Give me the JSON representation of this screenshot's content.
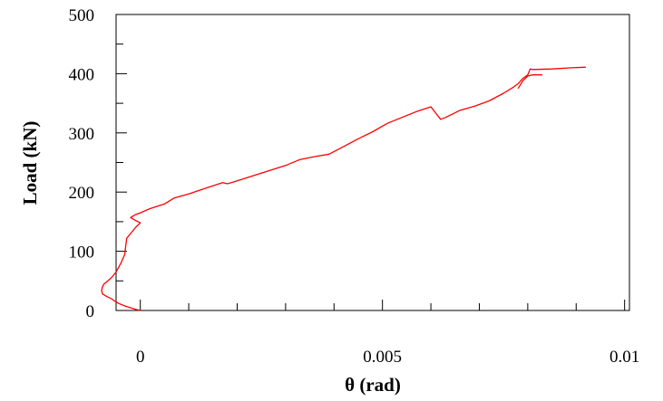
{
  "chart_data": {
    "type": "line",
    "xlabel": "θ (rad)",
    "ylabel": "Load (kN)",
    "xlim": [
      -0.0005,
      0.0101
    ],
    "ylim": [
      0,
      500
    ],
    "x_ticks": [
      0,
      0.005,
      0.01
    ],
    "x_tick_labels": [
      "0",
      "0.005",
      "0.01"
    ],
    "y_ticks": [
      0,
      100,
      200,
      300,
      400,
      500
    ],
    "y_tick_labels": [
      "0",
      "100",
      "200",
      "300",
      "400",
      "500"
    ],
    "grid": false,
    "legend": "none",
    "series": [
      {
        "color": "#ff0000",
        "points": [
          [
            0,
            0
          ],
          [
            -0.0001,
            2
          ],
          [
            -0.0003,
            7
          ],
          [
            -0.00045,
            12
          ],
          [
            -0.00055,
            17
          ],
          [
            -0.0006,
            20
          ],
          [
            -0.0007,
            24
          ],
          [
            -0.00078,
            28
          ],
          [
            -0.0008,
            34
          ],
          [
            -0.00078,
            40
          ],
          [
            -0.00075,
            45
          ],
          [
            -0.0007,
            48
          ],
          [
            -0.0006,
            55
          ],
          [
            -0.0005,
            65
          ],
          [
            -0.0004,
            80
          ],
          [
            -0.00032,
            95
          ],
          [
            -0.0003,
            110
          ],
          [
            -0.00028,
            122
          ],
          [
            -0.0002,
            130
          ],
          [
            -0.0001,
            140
          ],
          [
            0,
            148
          ],
          [
            -0.0001,
            152
          ],
          [
            -0.0002,
            157
          ],
          [
            -0.0001,
            162
          ],
          [
            0,
            165
          ],
          [
            0.0002,
            172
          ],
          [
            0.0005,
            180
          ],
          [
            0.0007,
            190
          ],
          [
            0.001,
            197
          ],
          [
            0.0014,
            208
          ],
          [
            0.0017,
            216
          ],
          [
            0.0018,
            214
          ],
          [
            0.002,
            219
          ],
          [
            0.0025,
            232
          ],
          [
            0.003,
            245
          ],
          [
            0.0033,
            255
          ],
          [
            0.0036,
            260
          ],
          [
            0.0039,
            264
          ],
          [
            0.0042,
            277
          ],
          [
            0.0045,
            290
          ],
          [
            0.0048,
            302
          ],
          [
            0.0051,
            316
          ],
          [
            0.0054,
            326
          ],
          [
            0.0057,
            336
          ],
          [
            0.006,
            344
          ],
          [
            0.0062,
            323
          ],
          [
            0.0063,
            326
          ],
          [
            0.0066,
            338
          ],
          [
            0.0069,
            345
          ],
          [
            0.0072,
            354
          ],
          [
            0.0075,
            367
          ],
          [
            0.0077,
            377
          ],
          [
            0.0078,
            383
          ],
          [
            0.0079,
            392
          ],
          [
            0.008,
            398
          ],
          [
            0.00805,
            408
          ],
          [
            0.0081,
            407
          ],
          [
            0.0085,
            408
          ],
          [
            0.0089,
            410
          ],
          [
            0.0092,
            411
          ]
        ]
      },
      {
        "color": "#ff0000",
        "points": [
          [
            0.0078,
            375
          ],
          [
            0.0079,
            388
          ],
          [
            0.008,
            396
          ],
          [
            0.0081,
            398
          ],
          [
            0.0083,
            398
          ]
        ]
      }
    ]
  }
}
